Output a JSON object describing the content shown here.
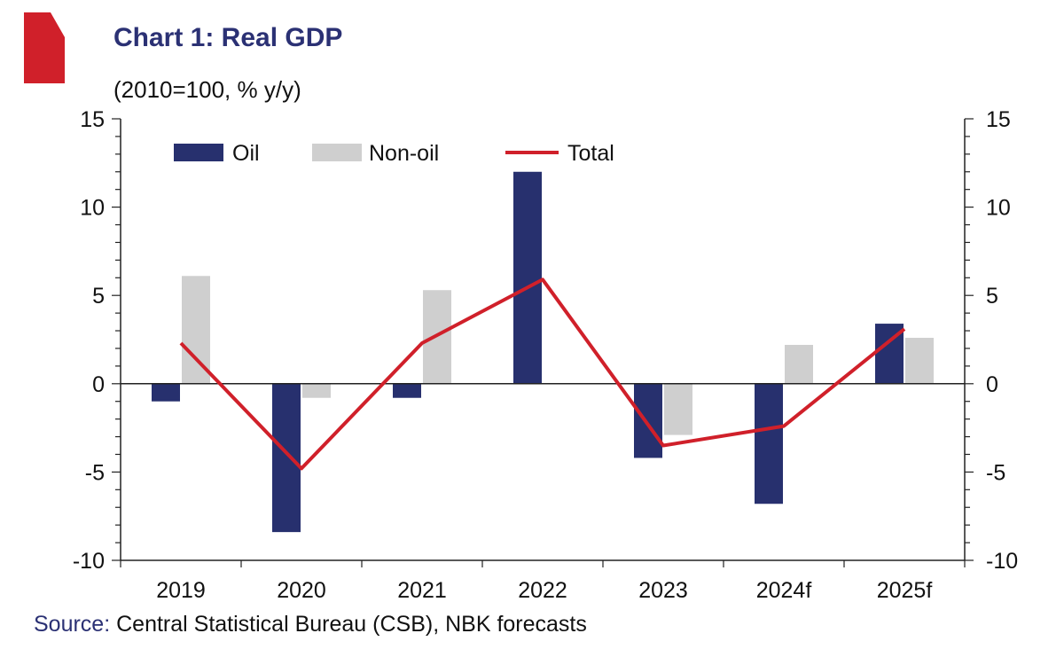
{
  "header": {
    "title": "Chart 1: Real GDP",
    "subtitle": "(2010=100, % y/y)"
  },
  "source": {
    "label": "Source:",
    "text": " Central Statistical Bureau (CSB), NBK forecasts"
  },
  "colors": {
    "oil": "#27306e",
    "non_oil": "#cfcfcf",
    "total": "#d0202a",
    "title": "#2b3174",
    "marker": "#d0202a"
  },
  "chart_data": {
    "type": "bar",
    "categories": [
      "2019",
      "2020",
      "2021",
      "2022",
      "2023",
      "2024f",
      "2025f"
    ],
    "series": [
      {
        "name": "Oil",
        "type": "bar",
        "values": [
          -1.0,
          -8.4,
          -0.8,
          12.0,
          -4.2,
          -6.8,
          3.4
        ]
      },
      {
        "name": "Non-oil",
        "type": "bar",
        "values": [
          6.1,
          -0.8,
          5.3,
          0.0,
          -2.9,
          2.2,
          2.6
        ]
      },
      {
        "name": "Total",
        "type": "line",
        "values": [
          2.3,
          -4.8,
          2.3,
          5.9,
          -3.5,
          -2.4,
          3.1
        ]
      }
    ],
    "ylim": [
      -10,
      15
    ],
    "yticks": [
      "15",
      "10",
      "5",
      "0",
      "-5",
      "-10"
    ],
    "y2ticks": [
      "15",
      "10",
      "5",
      "0",
      "-5",
      "-10"
    ],
    "legend_position": "top-left",
    "grid": false
  }
}
